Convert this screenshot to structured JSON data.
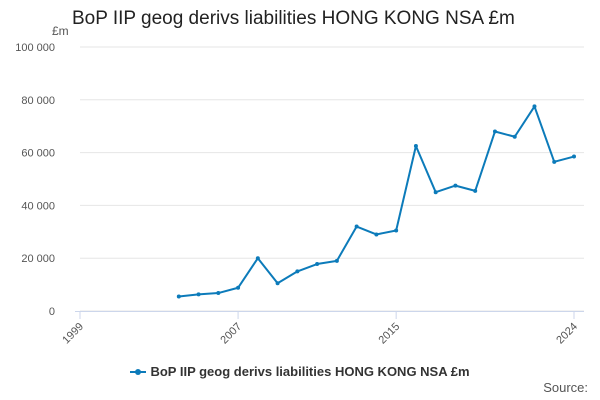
{
  "title": "BoP IIP geog derivs liabilities HONG KONG NSA £m",
  "unit_label": "£m",
  "source_label": "Source:",
  "colors": {
    "series": "#0c7bba",
    "grid": "#e6e6e6",
    "axis": "#ccd6eb"
  },
  "chart_data": {
    "type": "line",
    "title": "BoP IIP geog derivs liabilities HONG KONG NSA £m",
    "xlabel": "",
    "ylabel": "£m",
    "xlim": [
      1999,
      2024
    ],
    "ylim": [
      0,
      100000
    ],
    "x_ticks": [
      1999,
      2007,
      2015,
      2024
    ],
    "y_ticks": [
      0,
      20000,
      40000,
      60000,
      80000,
      100000
    ],
    "y_tick_labels": [
      "0",
      "20 000",
      "40 000",
      "60 000",
      "80 000",
      "100 000"
    ],
    "grid": true,
    "legend_position": "bottom",
    "series": [
      {
        "name": "BoP IIP geog derivs liabilities HONG KONG NSA £m",
        "x": [
          2004,
          2005,
          2006,
          2007,
          2008,
          2009,
          2010,
          2011,
          2012,
          2013,
          2014,
          2015,
          2016,
          2017,
          2018,
          2019,
          2020,
          2021,
          2022,
          2023,
          2024
        ],
        "values": [
          5500,
          6300,
          6800,
          8800,
          20000,
          10500,
          15000,
          17800,
          19000,
          32000,
          29000,
          30500,
          62500,
          45000,
          47500,
          45500,
          68000,
          66000,
          77500,
          56500,
          58500
        ]
      }
    ]
  }
}
